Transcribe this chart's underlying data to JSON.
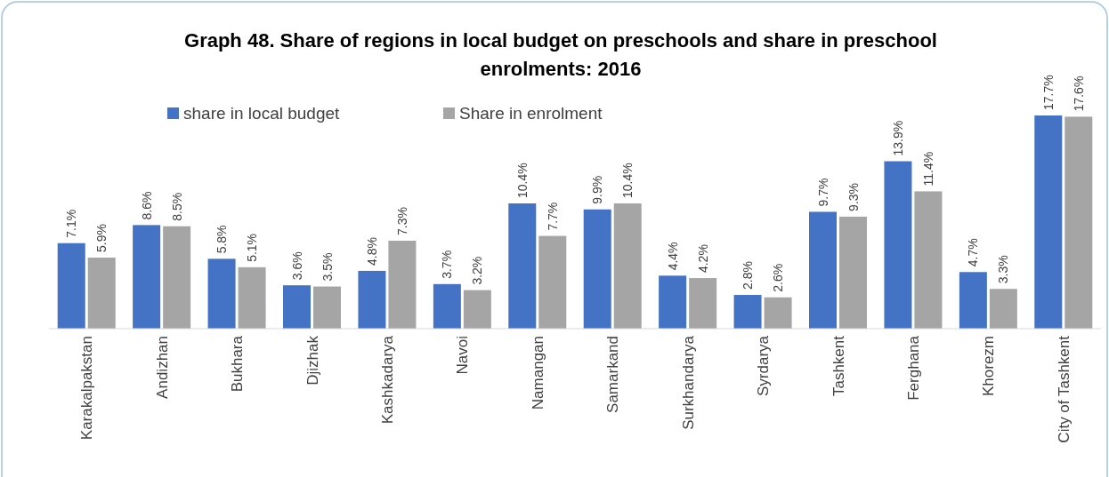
{
  "chart_data": {
    "type": "bar",
    "title": "Graph 48. Share of regions in local budget on preschools and share in preschool enrolments: 2016",
    "categories": [
      "Karakalpakstan",
      "Andizhan",
      "Bukhara",
      "Djizhak",
      "Kashkadarya",
      "Navoi",
      "Namangan",
      "Samarkand",
      "Surkhandarya",
      "Syrdarya",
      "Tashkent",
      "Ferghana",
      "Khorezm",
      "City of Tashkent"
    ],
    "series": [
      {
        "name": "share in local budget",
        "color": "#4472c4",
        "values": [
          7.1,
          8.6,
          5.8,
          3.6,
          4.8,
          3.7,
          10.4,
          9.9,
          4.4,
          2.8,
          9.7,
          13.9,
          4.7,
          17.7
        ],
        "value_labels": [
          "7.1%",
          "8.6%",
          "5.8%",
          "3.6%",
          "4.8%",
          "3.7%",
          "10.4%",
          "9.9%",
          "4.4%",
          "2.8%",
          "9.7%",
          "13.9%",
          "4.7%",
          "17.7%"
        ]
      },
      {
        "name": "Share in enrolment",
        "color": "#a5a5a5",
        "values": [
          5.9,
          8.5,
          5.1,
          3.5,
          7.3,
          3.2,
          7.7,
          10.4,
          4.2,
          2.6,
          9.3,
          11.4,
          3.3,
          17.6
        ],
        "value_labels": [
          "5.9%",
          "8.5%",
          "5.1%",
          "3.5%",
          "7.3%",
          "3.2%",
          "7.7%",
          "10.4%",
          "4.2%",
          "2.6%",
          "9.3%",
          "11.4%",
          "3.3%",
          "17.6%"
        ]
      }
    ],
    "legend": "top left"
  }
}
